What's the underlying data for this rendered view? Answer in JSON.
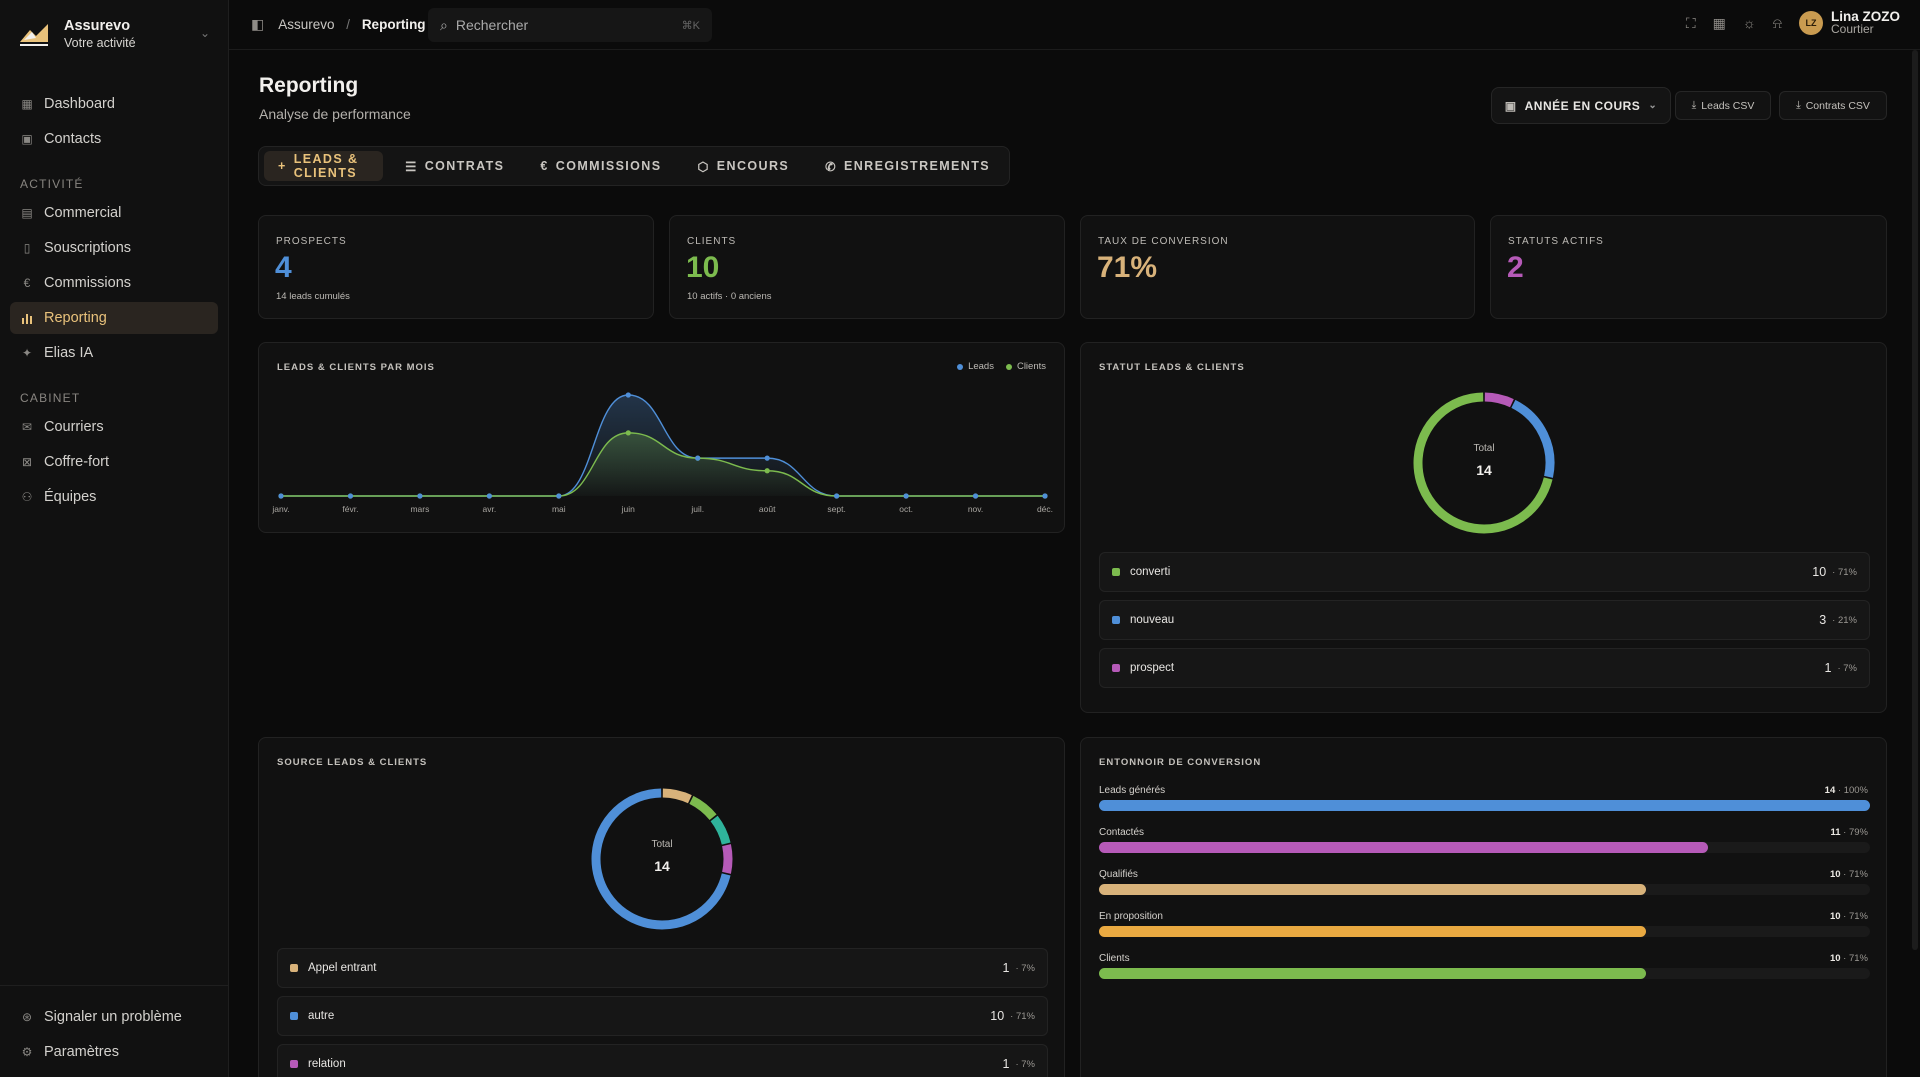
{
  "brand": {
    "name": "Assurevo",
    "subtitle": "Votre activité"
  },
  "sidebar": {
    "items": [
      {
        "label": "Dashboard",
        "icon": "dashboard-icon"
      },
      {
        "label": "Contacts",
        "icon": "contacts-icon"
      }
    ],
    "section_activite": "ACTIVITÉ",
    "activite_items": [
      {
        "label": "Commercial",
        "icon": "briefcase-icon"
      },
      {
        "label": "Souscriptions",
        "icon": "document-icon"
      },
      {
        "label": "Commissions",
        "icon": "euro-icon"
      },
      {
        "label": "Reporting",
        "icon": "bar-chart-icon",
        "active": true
      },
      {
        "label": "Elias IA",
        "icon": "sparkles-icon"
      }
    ],
    "section_cabinet": "CABINET",
    "cabinet_items": [
      {
        "label": "Courriers",
        "icon": "mail-icon"
      },
      {
        "label": "Coffre-fort",
        "icon": "vault-icon"
      },
      {
        "label": "Équipes",
        "icon": "team-icon"
      }
    ],
    "bottom_items": [
      {
        "label": "Signaler un problème",
        "icon": "support-icon"
      },
      {
        "label": "Paramètres",
        "icon": "gear-icon"
      }
    ]
  },
  "topbar": {
    "breadcrumb_root": "Assurevo",
    "breadcrumb_sep": "/",
    "breadcrumb_current": "Reporting",
    "search_placeholder": "Rechercher",
    "search_shortcut": "⌘K",
    "user_initials": "LZ",
    "user_name": "Lina ZOZO",
    "user_role": "Courtier"
  },
  "page": {
    "title": "Reporting",
    "subtitle": "Analyse de performance",
    "period_label": "ANNÉE EN COURS",
    "leads_csv": "Leads CSV",
    "contrats_csv": "Contrats CSV"
  },
  "tabs": [
    {
      "label": "LEADS & CLIENTS",
      "icon": "plus-icon",
      "active": true
    },
    {
      "label": "CONTRATS",
      "icon": "list-icon"
    },
    {
      "label": "COMMISSIONS",
      "icon": "euro-icon"
    },
    {
      "label": "ENCOURS",
      "icon": "box-icon"
    },
    {
      "label": "ENREGISTREMENTS",
      "icon": "phone-icon"
    }
  ],
  "stats": [
    {
      "label": "PROSPECTS",
      "value": "4",
      "sub": "14 leads cumulés",
      "color": "#4f8fd8"
    },
    {
      "label": "CLIENTS",
      "value": "10",
      "sub": "10 actifs · 0 anciens",
      "color": "#7cbb4e"
    },
    {
      "label": "TAUX DE CONVERSION",
      "value": "71%",
      "sub": "",
      "color": "#d8b27a"
    },
    {
      "label": "STATUTS ACTIFS",
      "value": "2",
      "sub": "",
      "color": "#b65ab8"
    }
  ],
  "monthly_card": {
    "title": "LEADS & CLIENTS PAR MOIS",
    "legend_leads": "Leads",
    "legend_clients": "Clients"
  },
  "chart_data": [
    {
      "type": "area",
      "title": "LEADS & CLIENTS PAR MOIS",
      "categories": [
        "janv.",
        "févr.",
        "mars",
        "avr.",
        "mai",
        "juin",
        "juil.",
        "août",
        "sept.",
        "oct.",
        "nov.",
        "déc."
      ],
      "series": [
        {
          "name": "Leads",
          "color": "#4f8fd8",
          "values": [
            0,
            0,
            0,
            0,
            0,
            8,
            3,
            3,
            0,
            0,
            0,
            0
          ]
        },
        {
          "name": "Clients",
          "color": "#7cbb4e",
          "values": [
            0,
            0,
            0,
            0,
            0,
            5,
            3,
            2,
            0,
            0,
            0,
            0
          ]
        }
      ],
      "grid": false,
      "legend": "top-right"
    },
    {
      "type": "pie",
      "title": "STATUT LEADS & CLIENTS",
      "center_label": "Total",
      "center_value": "14",
      "labels": [
        "converti",
        "nouveau",
        "prospect"
      ],
      "values": [
        10,
        3,
        1
      ],
      "percents": [
        "71%",
        "21%",
        "7%"
      ],
      "colors": [
        "#7cbb4e",
        "#4f8fd8",
        "#b65ab8"
      ]
    },
    {
      "type": "pie",
      "title": "SOURCE LEADS & CLIENTS",
      "center_label": "Total",
      "center_value": "14",
      "labels": [
        "Appel entrant",
        "autre",
        "relation"
      ],
      "values": [
        1,
        10,
        1
      ],
      "percents": [
        "7%",
        "71%",
        "7%"
      ],
      "colors": [
        "#d8b27a",
        "#4f8fd8",
        "#b65ab8"
      ],
      "extra_segment_colors": [
        "#7cbb4e",
        "#2fb39b"
      ]
    },
    {
      "type": "bar",
      "title": "ENTONNOIR DE CONVERSION",
      "categories": [
        "Leads générés",
        "Contactés",
        "Qualifiés",
        "En proposition",
        "Clients"
      ],
      "values": [
        14,
        11,
        10,
        10,
        10
      ],
      "percents": [
        "100%",
        "79%",
        "71%",
        "71%",
        "71%"
      ],
      "fractions": [
        1.0,
        0.79,
        0.71,
        0.71,
        0.71
      ],
      "colors": [
        "#4f8fd8",
        "#b65ab8",
        "#d8b27a",
        "#e9a941",
        "#7cbb4e"
      ]
    }
  ],
  "status_card": {
    "title": "STATUT LEADS & CLIENTS",
    "total_label": "Total",
    "total_value": "14"
  },
  "source_card": {
    "title": "SOURCE LEADS & CLIENTS",
    "total_label": "Total",
    "total_value": "14"
  },
  "funnel_card": {
    "title": "ENTONNOIR DE CONVERSION"
  }
}
